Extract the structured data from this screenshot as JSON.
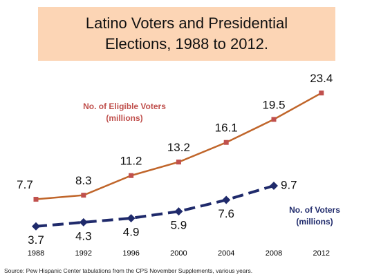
{
  "chart_data": {
    "type": "line",
    "title": "Latino Voters and Presidential Elections, 1988 to 2012.",
    "source": "Source: Pew Hispanic Center tabulations from the CPS November Supplements, various years.",
    "categories": [
      "1988",
      "1992",
      "1996",
      "2000",
      "2004",
      "2008",
      "2012"
    ],
    "ylim": [
      0,
      25
    ],
    "series": [
      {
        "name": "No. of Eligible Voters (millions)",
        "color": "#c0652a",
        "marker_color": "#c0504d",
        "values": [
          7.7,
          8.3,
          11.2,
          13.2,
          16.1,
          19.5,
          23.4
        ]
      },
      {
        "name": "No. of Voters (millions)",
        "color": "#1f2a6b",
        "marker_color": "#1f2a6b",
        "values": [
          3.7,
          4.3,
          4.9,
          5.9,
          7.6,
          9.7,
          null
        ]
      }
    ]
  }
}
